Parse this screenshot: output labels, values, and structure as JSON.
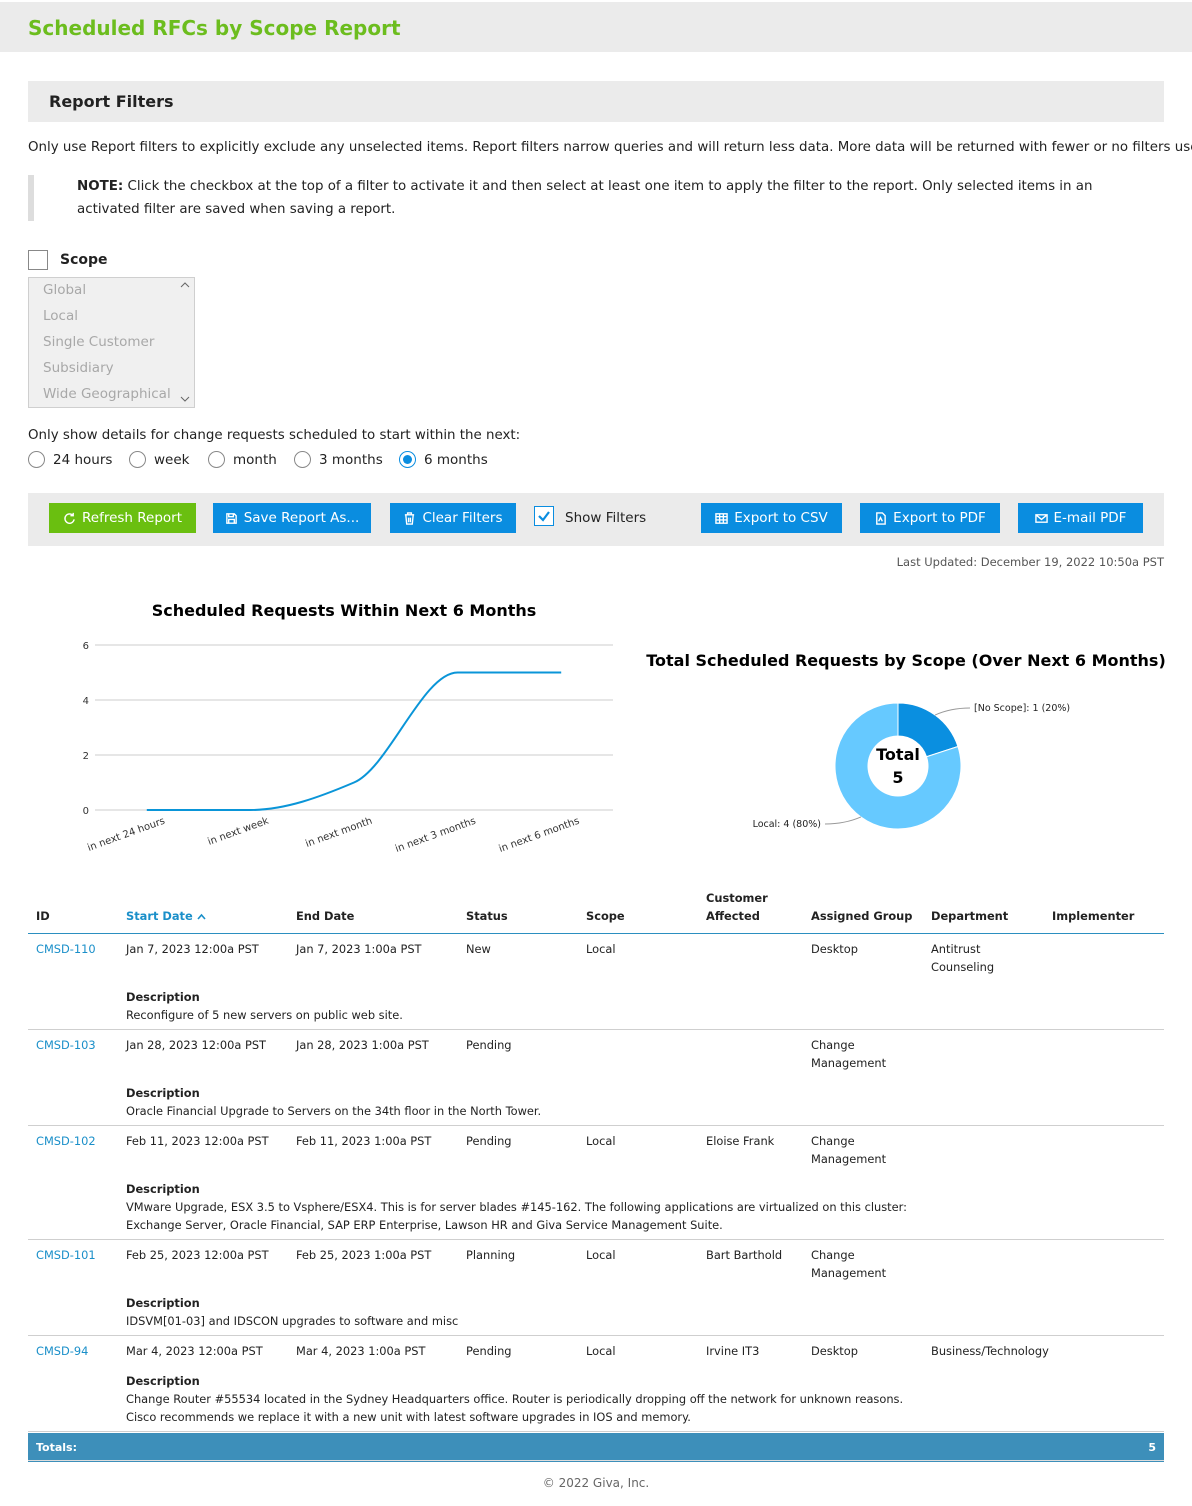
{
  "header": {
    "title": "Scheduled RFCs by Scope Report"
  },
  "filters": {
    "title": "Report Filters",
    "intro": "Only use Report filters to explicitly exclude any unselected items. Report filters narrow queries and will return less data. More data will be returned with fewer or no filters used.",
    "note_label": "NOTE:",
    "note": "Click the checkbox at the top of a filter to activate it and then select at least one item to apply the filter to the report. Only selected items in an activated filter are saved when saving a report.",
    "scope_label": "Scope",
    "scope_options": [
      "Global",
      "Local",
      "Single Customer",
      "Subsidiary",
      "Wide Geographical"
    ],
    "schedule_label": "Only show details for change requests scheduled to start within the next:",
    "schedule_options": [
      "24 hours",
      "week",
      "month",
      "3 months",
      "6 months"
    ],
    "schedule_selected": 4
  },
  "toolbar": {
    "buttons": [
      "Refresh Report",
      "Save Report As...",
      "Clear Filters"
    ],
    "show_filters": "Show Filters",
    "show_filters_checked": true,
    "exports": [
      "Export to CSV",
      "Export to PDF",
      "E-mail PDF"
    ]
  },
  "last_updated": "Last Updated: December 19, 2022 10:50a PST",
  "chart_data": [
    {
      "type": "line",
      "title": "Scheduled Requests Within Next 6 Months",
      "categories": [
        "in next 24 hours",
        "in next week",
        "in next month",
        "in next 3 months",
        "in next 6 months"
      ],
      "values": [
        0,
        0,
        1,
        5,
        5
      ],
      "color": "#0a95d8",
      "ylim": [
        0,
        6
      ],
      "yticks": [
        0,
        2,
        4,
        6
      ],
      "grid": true
    },
    {
      "type": "pie",
      "title": "Total Scheduled Requests by Scope (Over Next 6 Months)",
      "categories": [
        "[No Scope]",
        "Local"
      ],
      "values": [
        1,
        4
      ],
      "value_labels": [
        "[No Scope]: 1 (20%)",
        "Local: 4 (80%)"
      ],
      "colors": [
        "#0a8fe0",
        "#66c9ff"
      ],
      "center_label": "Total",
      "total": 5
    }
  ],
  "table": {
    "columns": [
      "ID",
      "Start Date",
      "End Date",
      "Status",
      "Scope",
      "Customer Affected",
      "Assigned Group",
      "Department",
      "Implementer"
    ],
    "sorted_column": 1,
    "description_label": "Description",
    "rows": [
      {
        "id": "CMSD-110",
        "start": "Jan 7, 2023 12:00a PST",
        "end": "Jan 7, 2023 1:00a PST",
        "status": "New",
        "scope": "Local",
        "customer": null,
        "group": "Desktop",
        "department": "Antitrust Counseling",
        "implementer": null,
        "description": "Reconfigure of 5 new servers on public web site."
      },
      {
        "id": "CMSD-103",
        "start": "Jan 28, 2023 12:00a PST",
        "end": "Jan 28, 2023 1:00a PST",
        "status": "Pending",
        "scope": null,
        "customer": null,
        "group": "Change Management",
        "department": null,
        "implementer": null,
        "description": "Oracle Financial Upgrade to Servers on the 34th floor in the North Tower."
      },
      {
        "id": "CMSD-102",
        "start": "Feb 11, 2023 12:00a PST",
        "end": "Feb 11, 2023 1:00a PST",
        "status": "Pending",
        "scope": "Local",
        "customer": "Eloise Frank",
        "group": "Change Management",
        "department": null,
        "implementer": null,
        "description": "VMware Upgrade, ESX 3.5 to Vsphere/ESX4. This is for server blades #145-162. The following applications are virtualized on this cluster: Exchange Server, Oracle Financial, SAP ERP Enterprise, Lawson HR and Giva Service Management Suite."
      },
      {
        "id": "CMSD-101",
        "start": "Feb 25, 2023 12:00a PST",
        "end": "Feb 25, 2023 1:00a PST",
        "status": "Planning",
        "scope": "Local",
        "customer": "Bart Barthold",
        "group": "Change Management",
        "department": null,
        "implementer": null,
        "description": "IDSVM[01-03] and IDSCON upgrades to software and misc"
      },
      {
        "id": "CMSD-94",
        "start": "Mar 4, 2023 12:00a PST",
        "end": "Mar 4, 2023 1:00a PST",
        "status": "Pending",
        "scope": "Local",
        "customer": "Irvine IT3",
        "group": "Desktop",
        "department": "Business/Technology",
        "implementer": null,
        "description": "Change Router #55534 located in the Sydney Headquarters office. Router is periodically dropping off the network for unknown reasons. Cisco recommends we replace it with a new unit with latest software upgrades in IOS and memory."
      }
    ],
    "totals_label": "Totals:",
    "total": 5
  },
  "footer": "© 2022 Giva, Inc."
}
